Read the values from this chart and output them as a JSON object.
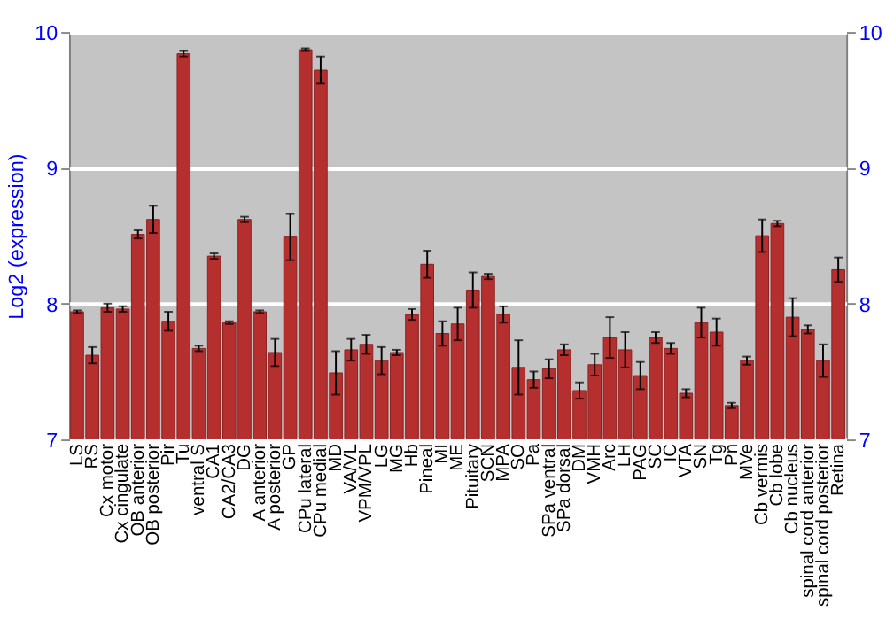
{
  "chart_data": {
    "type": "bar",
    "ylabel": "Log2 (expression)",
    "categories": [
      "LS",
      "RS",
      "Cx motor",
      "Cx cingulate",
      "OB anterior",
      "OB posterior",
      "Pir",
      "Tu",
      "ventral S",
      "CA1",
      "CA2/CA3",
      "DG",
      "A anterior",
      "A posterior",
      "GP",
      "CPu lateral",
      "CPu medial",
      "MD",
      "VA/VL",
      "VPM/VPL",
      "LG",
      "MG",
      "Hb",
      "Pineal",
      "MI",
      "ME",
      "Pituitary",
      "SCN",
      "MPA",
      "SO",
      "Pa",
      "SPa ventral",
      "SPa dorsal",
      "DM",
      "VMH",
      "Arc",
      "LH",
      "PAG",
      "SC",
      "IC",
      "VTA",
      "SN",
      "Tg",
      "Pn",
      "MVe",
      "Cb vermis",
      "Cb lobe",
      "Cb nucleus",
      "spinal cord anterior",
      "spinal cord posterior",
      "Retina"
    ],
    "series": [
      {
        "color": "#b52f2f",
        "values": [
          7.94,
          7.62,
          7.97,
          7.96,
          8.51,
          8.62,
          7.87,
          9.84,
          7.67,
          8.35,
          7.86,
          8.62,
          7.94,
          7.64,
          8.49,
          9.87,
          9.72,
          7.49,
          7.66,
          7.7,
          7.58,
          7.64,
          7.92,
          8.29,
          7.78,
          7.85,
          8.1,
          8.2,
          7.92,
          7.53,
          7.44,
          7.52,
          7.66,
          7.36,
          7.55,
          7.75,
          7.66,
          7.47,
          7.75,
          7.67,
          7.34,
          7.86,
          7.79,
          7.25,
          7.58,
          8.5,
          8.59,
          7.9,
          7.81,
          7.58,
          8.25
        ],
        "errors": [
          0.01,
          0.06,
          0.03,
          0.02,
          0.03,
          0.1,
          0.07,
          0.02,
          0.02,
          0.02,
          0.01,
          0.02,
          0.01,
          0.1,
          0.17,
          0.01,
          0.1,
          0.16,
          0.08,
          0.07,
          0.1,
          0.02,
          0.04,
          0.1,
          0.09,
          0.12,
          0.13,
          0.02,
          0.06,
          0.2,
          0.06,
          0.07,
          0.04,
          0.06,
          0.08,
          0.15,
          0.13,
          0.1,
          0.04,
          0.04,
          0.03,
          0.11,
          0.1,
          0.02,
          0.03,
          0.12,
          0.02,
          0.14,
          0.03,
          0.12,
          0.09
        ]
      }
    ],
    "ylim": [
      7,
      10
    ],
    "yticks": [
      7,
      8,
      9,
      10
    ],
    "y2lim": [
      7,
      10
    ],
    "y2ticks": [
      7,
      8,
      9,
      10
    ],
    "grid": "y"
  }
}
